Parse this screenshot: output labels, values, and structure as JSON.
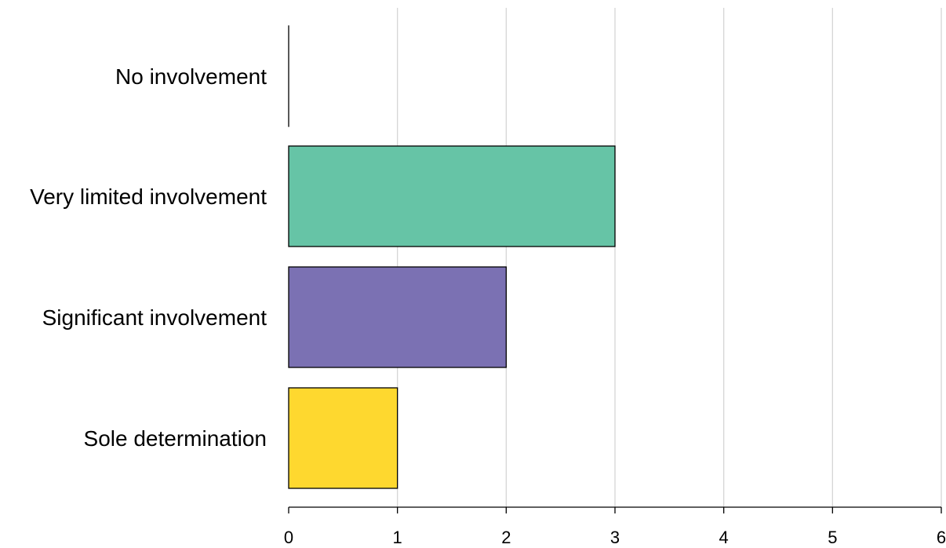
{
  "chart_data": {
    "type": "bar",
    "orientation": "horizontal",
    "categories": [
      "No involvement",
      "Very limited involvement",
      "Significant involvement",
      "Sole determination"
    ],
    "values": [
      0,
      3,
      2,
      1
    ],
    "colors": [
      "#ffffff",
      "#66c4a6",
      "#7b71b3",
      "#fed82f"
    ],
    "xlim": [
      0,
      6
    ],
    "xticks": [
      "0",
      "1",
      "2",
      "3",
      "4",
      "5",
      "6"
    ],
    "grid": "vertical"
  }
}
